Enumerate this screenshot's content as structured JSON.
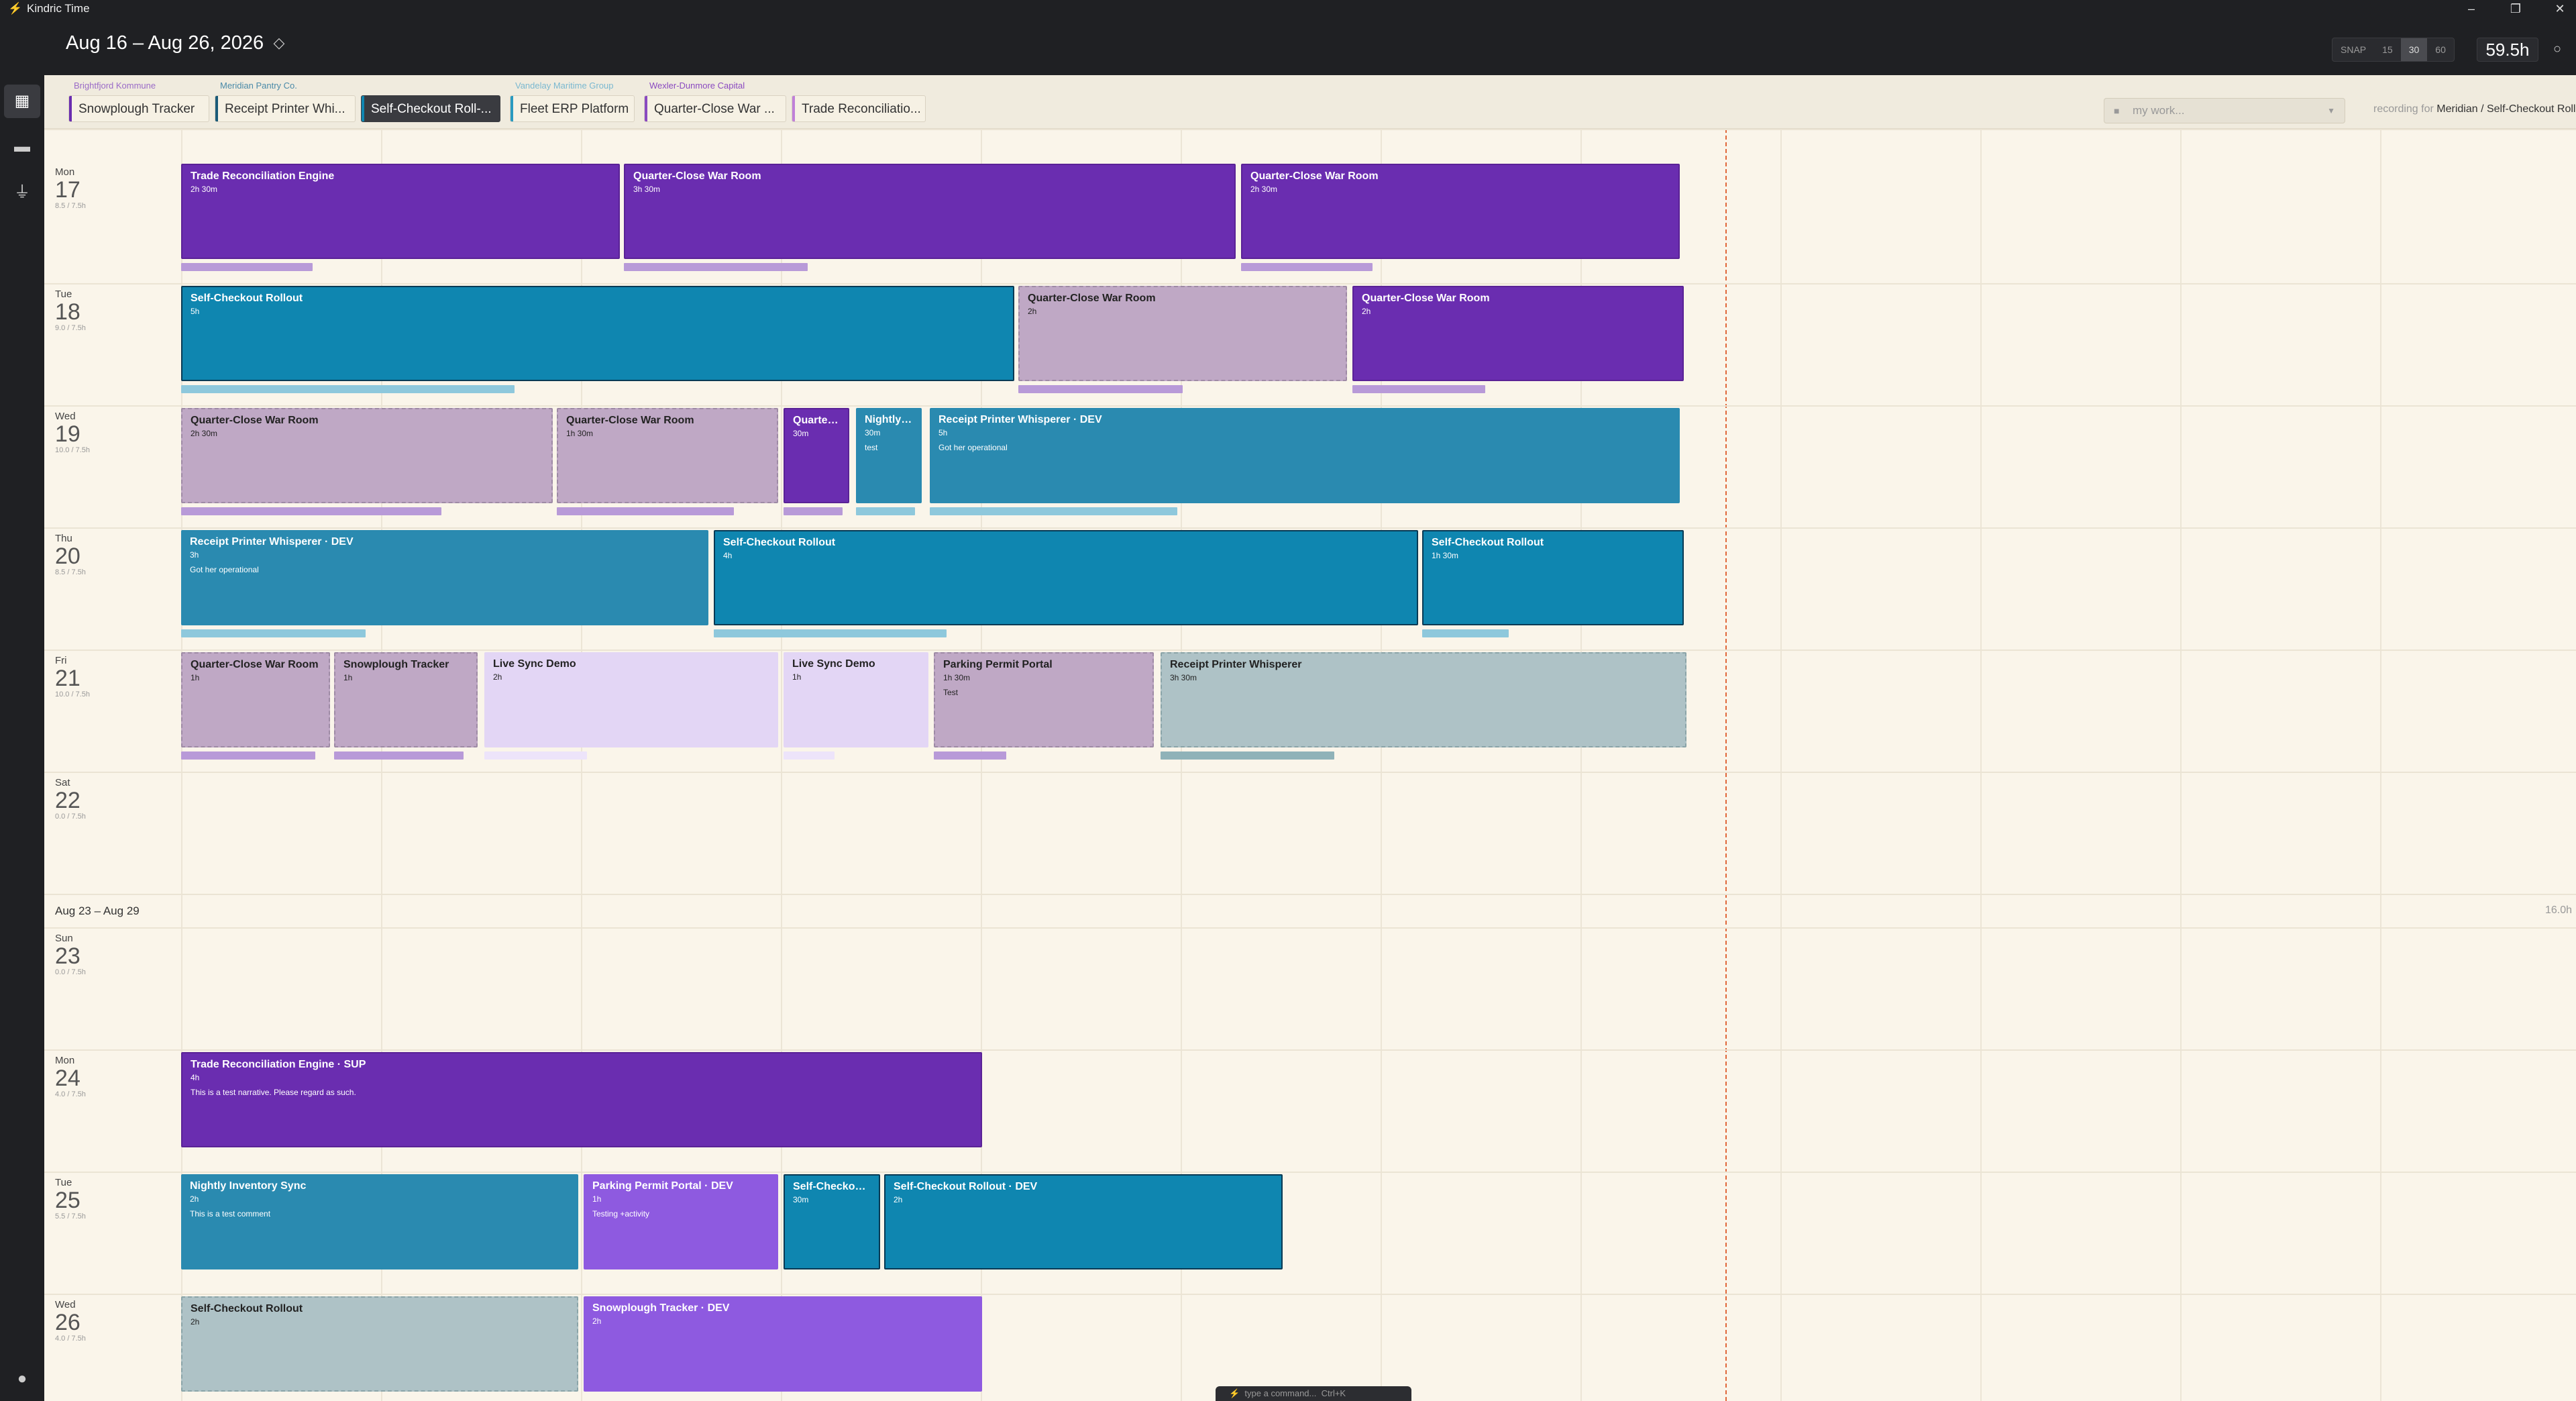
{
  "app": {
    "title": "Kindric Time",
    "win_minimize": "–",
    "win_maximize": "❐",
    "win_close": "✕"
  },
  "header": {
    "date_range": "Aug 16 – Aug 26, 2026",
    "snap_label": "SNAP",
    "snap_options": [
      "15",
      "30",
      "60"
    ],
    "snap_selected": "30",
    "total_hours": "59.5h"
  },
  "clients": [
    "Brightfjord Kommune",
    "Meridian Pantry Co.",
    "Vandelay Maritime Group",
    "Wexler-Dunmore Capital"
  ],
  "project_tabs": [
    "Snowplough Tracker",
    "Receipt Printer Whi...",
    "Self-Checkout Roll-...",
    "Fleet ERP Platform",
    "Quarter-Close War ...",
    "Trade Reconciliatio..."
  ],
  "search": {
    "placeholder": "my work..."
  },
  "recording": {
    "prefix": "recording for",
    "target": "Meridian / Self-Checkout Rollout"
  },
  "days": [
    {
      "dow": "Mon",
      "num": "17",
      "hrs": "8.5 / 7.5h"
    },
    {
      "dow": "Tue",
      "num": "18",
      "hrs": "9.0 / 7.5h"
    },
    {
      "dow": "Wed",
      "num": "19",
      "hrs": "10.0 / 7.5h"
    },
    {
      "dow": "Thu",
      "num": "20",
      "hrs": "8.5 / 7.5h"
    },
    {
      "dow": "Fri",
      "num": "21",
      "hrs": "10.0 / 7.5h"
    },
    {
      "dow": "Sat",
      "num": "22",
      "hrs": "0.0 / 7.5h"
    },
    {
      "dow": "Sun",
      "num": "23",
      "hrs": "0.0 / 7.5h"
    },
    {
      "dow": "Mon",
      "num": "24",
      "hrs": "4.0 / 7.5h"
    },
    {
      "dow": "Tue",
      "num": "25",
      "hrs": "5.5 / 7.5h"
    },
    {
      "dow": "Wed",
      "num": "26",
      "hrs": "4.0 / 7.5h"
    }
  ],
  "week2": {
    "label": "Aug 23 – Aug 29",
    "total": "16.0h"
  },
  "entries": [
    {
      "t": "Trade Reconciliation Engine",
      "d": "2h 30m",
      "n": "",
      "progress": 0.3
    },
    {
      "t": "Quarter-Close War Room",
      "d": "3h 30m",
      "n": "",
      "progress": 0.3
    },
    {
      "t": "Quarter-Close War Room",
      "d": "2h 30m",
      "n": "",
      "progress": 0.3
    },
    {
      "t": "Self-Checkout Rollout",
      "d": "5h",
      "n": "",
      "progress": 0.4
    },
    {
      "t": "Quarter-Close War Room",
      "d": "2h",
      "n": "",
      "progress": 0.5
    },
    {
      "t": "Quarter-Close War Room",
      "d": "2h",
      "n": "",
      "progress": 0.4
    },
    {
      "t": "Quarter-Close War Room",
      "d": "2h 30m",
      "n": "",
      "progress": 0.7
    },
    {
      "t": "Quarter-Close War Room",
      "d": "1h 30m",
      "n": "",
      "progress": 0.8
    },
    {
      "t": "Quarter-...",
      "d": "30m",
      "n": "",
      "progress": 0.9
    },
    {
      "t": "Nightly I...",
      "d": "30m",
      "n": "test",
      "progress": 0.9
    },
    {
      "t": "Receipt Printer Whisperer · DEV",
      "d": "5h",
      "n": "Got her operational",
      "progress": 0.33
    },
    {
      "t": "Receipt Printer Whisperer · DEV",
      "d": "3h",
      "n": "Got her operational",
      "progress": 0.35
    },
    {
      "t": "Self-Checkout Rollout",
      "d": "4h",
      "n": "",
      "progress": 0.33
    },
    {
      "t": "Self-Checkout Rollout",
      "d": "1h 30m",
      "n": "",
      "progress": 0.33
    },
    {
      "t": "Quarter-Close War Room",
      "d": "1h",
      "n": "",
      "progress": 0.9
    },
    {
      "t": "Snowplough Tracker",
      "d": "1h",
      "n": "",
      "progress": 0.9
    },
    {
      "t": "Live Sync Demo",
      "d": "2h",
      "n": "",
      "progress": 0.35
    },
    {
      "t": "Live Sync Demo",
      "d": "1h",
      "n": "",
      "progress": 0.35
    },
    {
      "t": "Parking Permit Portal",
      "d": "1h 30m",
      "n": "Test",
      "progress": 0.33
    },
    {
      "t": "Receipt Printer Whisperer",
      "d": "3h 30m",
      "n": "",
      "progress": 0.33
    },
    {
      "t": "Trade Reconciliation Engine · SUP",
      "d": "4h",
      "n": "This is a test narrative. Please regard as such.",
      "progress": 0
    },
    {
      "t": "Nightly Inventory Sync",
      "d": "2h",
      "n": "This is a test comment",
      "progress": 0
    },
    {
      "t": "Parking Permit Portal · DEV",
      "d": "1h",
      "n": "Testing +activity",
      "progress": 0
    },
    {
      "t": "Self-Checkout...",
      "d": "30m",
      "n": "",
      "progress": 0
    },
    {
      "t": "Self-Checkout Rollout · DEV",
      "d": "2h",
      "n": "",
      "progress": 0
    },
    {
      "t": "Self-Checkout Rollout",
      "d": "2h",
      "n": "",
      "progress": 0
    },
    {
      "t": "Snowplough Tracker · DEV",
      "d": "2h",
      "n": "",
      "progress": 0
    }
  ],
  "command_bar": {
    "placeholder": "type a command...",
    "shortcut": "Ctrl+K"
  },
  "icons": {
    "calendar": "calendar-icon",
    "folder": "folder-icon",
    "plug": "plug-icon",
    "user": "user-icon",
    "lock": "lock-icon",
    "diamond": "diamond-icon",
    "bolt": "bolt-icon"
  },
  "colors": {
    "purple": "#6a2db0",
    "teal": "#0f86b0",
    "mauve": "#bfa8c5",
    "lavender": "#e3d6f5",
    "violet": "#8e5ae0",
    "grey_teal": "#aec2c6",
    "now_line": "#e0673a"
  }
}
